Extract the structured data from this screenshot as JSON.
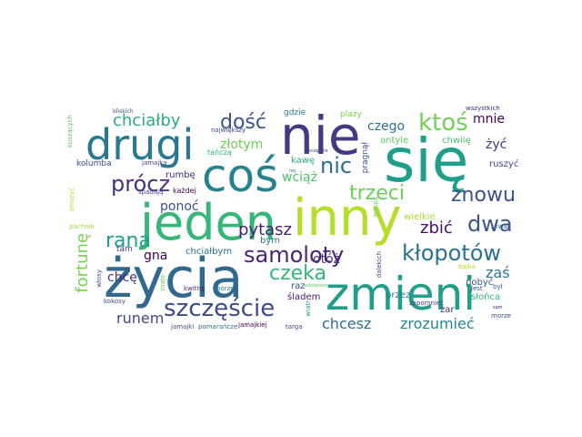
{
  "words": [
    {
      "text": "się",
      "color": "#1f9e89"
    },
    {
      "text": "nie",
      "color": "#443983"
    },
    {
      "text": "jeden",
      "color": "#35b779"
    },
    {
      "text": "inny",
      "color": "#b5de2b"
    },
    {
      "text": "życia",
      "color": "#31688e"
    },
    {
      "text": "zmieni",
      "color": "#1f9e89"
    },
    {
      "text": "drugi",
      "color": "#2a788e"
    },
    {
      "text": "coś",
      "color": "#26828e"
    },
    {
      "text": "szczęście",
      "color": "#3e4a89"
    },
    {
      "text": "samoloty",
      "color": "#482475"
    },
    {
      "text": "kłopotów",
      "color": "#2c728e"
    },
    {
      "text": "trzeci",
      "color": "#6ece58"
    },
    {
      "text": "znowu",
      "color": "#3b528b"
    },
    {
      "text": "ktoś",
      "color": "#73d056"
    },
    {
      "text": "dość",
      "color": "#39568c"
    },
    {
      "text": "rana",
      "color": "#1fa088"
    },
    {
      "text": "prócz",
      "color": "#46327e"
    },
    {
      "text": "nic",
      "color": "#2e6d8e"
    },
    {
      "text": "czeka",
      "color": "#35b779"
    },
    {
      "text": "dwa",
      "color": "#3b528b"
    },
    {
      "text": "fortunę",
      "color": "#7ad151"
    },
    {
      "text": "runem",
      "color": "#3e4a89"
    },
    {
      "text": "chcesz",
      "color": "#31688e"
    },
    {
      "text": "zrozumieć",
      "color": "#23888e"
    },
    {
      "text": "chciałby",
      "color": "#29af7f"
    },
    {
      "text": "pytasz",
      "color": "#481f70"
    },
    {
      "text": "zbić",
      "color": "#471063"
    },
    {
      "text": "zaś",
      "color": "#2a788e"
    },
    {
      "text": "chcę",
      "color": "#472d7b"
    },
    {
      "text": "złotym",
      "color": "#6ece58"
    },
    {
      "text": "wciąż",
      "color": "#4ac16d"
    },
    {
      "text": "czego",
      "color": "#2c728e"
    },
    {
      "text": "mnie",
      "color": "#440154"
    },
    {
      "text": "żyć",
      "color": "#46337f"
    },
    {
      "text": "ponoć",
      "color": "#3b528b"
    },
    {
      "text": "gna",
      "color": "#440154"
    },
    {
      "text": "otóż",
      "color": "#46337f"
    },
    {
      "text": "śladem",
      "color": "#481a6c"
    },
    {
      "text": "rumbę",
      "color": "#472c7a"
    },
    {
      "text": "chciałbym",
      "color": "#2c728e"
    },
    {
      "text": "kawę",
      "color": "#27ad81"
    },
    {
      "text": "raz",
      "color": "#3f4889"
    },
    {
      "text": "bym",
      "color": "#2a788e"
    },
    {
      "text": "przez",
      "color": "#277f8e"
    },
    {
      "text": "wielkie",
      "color": "#a8db34"
    },
    {
      "text": "antyle",
      "color": "#5ec962"
    },
    {
      "text": "chwilę",
      "color": "#4ac16d"
    },
    {
      "text": "ruszyć",
      "color": "#404688"
    },
    {
      "text": "pobyć",
      "color": "#3b528b"
    },
    {
      "text": "słońca",
      "color": "#35b779"
    },
    {
      "text": "żar",
      "color": "#472d7b"
    },
    {
      "text": "gdzie",
      "color": "#2a788e"
    },
    {
      "text": "plaży",
      "color": "#7ad151"
    },
    {
      "text": "kolumba",
      "color": "#3e4a89"
    },
    {
      "text": "tam",
      "color": "#424086"
    },
    {
      "text": "każdej",
      "color": "#440154"
    },
    {
      "text": "spadają",
      "color": "#414487"
    },
    {
      "text": "jamajka",
      "color": "#433e85"
    },
    {
      "text": "największy",
      "color": "#3e4989"
    },
    {
      "text": "tańczą",
      "color": "#2db27d"
    },
    {
      "text": "pragnął",
      "color": "#3b528b"
    },
    {
      "text": "zapomnieć",
      "color": "#424086"
    },
    {
      "text": "kwitną",
      "color": "#481f70"
    },
    {
      "text": "porze",
      "color": "#2a788e"
    },
    {
      "text": "jamajkiej",
      "color": "#440154"
    },
    {
      "text": "targa",
      "color": "#3e4a89"
    },
    {
      "text": "jamajki",
      "color": "#404688"
    },
    {
      "text": "pomarańcze",
      "color": "#2d708e"
    },
    {
      "text": "kokosy",
      "color": "#3d4e8a"
    },
    {
      "text": "włosy",
      "color": "#3b528b"
    },
    {
      "text": "mało",
      "color": "#67cc5c"
    },
    {
      "text": "pachnie",
      "color": "#9fda3a"
    },
    {
      "text": "dalekich",
      "color": "#3d4d8a"
    },
    {
      "text": "wiatr",
      "color": "#1e9b8a"
    },
    {
      "text": "jest",
      "color": "#3c4f8a"
    },
    {
      "text": "był",
      "color": "#31688e"
    },
    {
      "text": "wyspa",
      "color": "#6ece58"
    },
    {
      "text": "bajka",
      "color": "#b5de2b"
    },
    {
      "text": "skwar",
      "color": "#31688e"
    },
    {
      "text": "morze",
      "color": "#3e4989"
    },
    {
      "text": "wszystkich",
      "color": "#46307e"
    },
    {
      "text": "bliskich",
      "color": "#3e4a89"
    },
    {
      "text": "kuszących",
      "color": "#5ec962"
    },
    {
      "text": "smażyć",
      "color": "#b5de2b"
    },
    {
      "text": "wszędzie",
      "color": "#3e4a89"
    },
    {
      "text": "nej",
      "color": "#2a788e"
    },
    {
      "text": "sam",
      "color": "#48186a"
    },
    {
      "text": "wdziękiem",
      "color": "#5ec962"
    }
  ]
}
